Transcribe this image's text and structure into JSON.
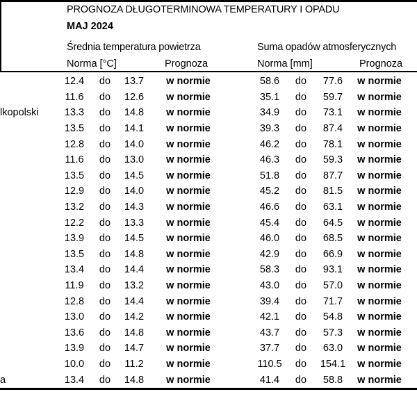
{
  "colors": {
    "text": "#000000",
    "background": "#ffffff",
    "rule": "#000000"
  },
  "header": {
    "title": "PROGNOZA DŁUGOTERMINOWA TEMPERATURY I OPADU",
    "month": "MAJ 2024"
  },
  "table": {
    "section_temperature": "Średnia temperatura powietrza",
    "section_precipitation": "Suma opadów atmosferycznych",
    "columns": {
      "temp_norm": "Norma [°C]",
      "temp_forecast": "Prognoza",
      "precip_norm": "Norma [mm]",
      "precip_forecast": "Prognoza"
    },
    "range_word": "do",
    "rows": [
      {
        "station_fragment": "",
        "temp_low": "12.4",
        "temp_high": "13.7",
        "temp_forecast": "w normie",
        "precip_low": "58.6",
        "precip_high": "77.6",
        "precip_forecast": "w normie"
      },
      {
        "station_fragment": "",
        "temp_low": "11.6",
        "temp_high": "12.6",
        "temp_forecast": "w normie",
        "precip_low": "35.1",
        "precip_high": "59.7",
        "precip_forecast": "w normie"
      },
      {
        "station_fragment": "lkopolski",
        "temp_low": "13.3",
        "temp_high": "14.8",
        "temp_forecast": "w normie",
        "precip_low": "34.9",
        "precip_high": "73.1",
        "precip_forecast": "w normie"
      },
      {
        "station_fragment": "",
        "temp_low": "13.5",
        "temp_high": "14.1",
        "temp_forecast": "w normie",
        "precip_low": "39.3",
        "precip_high": "87.4",
        "precip_forecast": "w normie"
      },
      {
        "station_fragment": "",
        "temp_low": "12.8",
        "temp_high": "14.0",
        "temp_forecast": "w normie",
        "precip_low": "46.2",
        "precip_high": "78.1",
        "precip_forecast": "w normie"
      },
      {
        "station_fragment": "",
        "temp_low": "11.6",
        "temp_high": "13.0",
        "temp_forecast": "w normie",
        "precip_low": "46.3",
        "precip_high": "59.3",
        "precip_forecast": "w normie"
      },
      {
        "station_fragment": "",
        "temp_low": "13.5",
        "temp_high": "14.5",
        "temp_forecast": "w normie",
        "precip_low": "51.8",
        "precip_high": "87.7",
        "precip_forecast": "w normie"
      },
      {
        "station_fragment": "",
        "temp_low": "12.9",
        "temp_high": "14.0",
        "temp_forecast": "w normie",
        "precip_low": "45.2",
        "precip_high": "81.5",
        "precip_forecast": "w normie"
      },
      {
        "station_fragment": "",
        "temp_low": "13.2",
        "temp_high": "14.3",
        "temp_forecast": "w normie",
        "precip_low": "46.6",
        "precip_high": "63.1",
        "precip_forecast": "w normie"
      },
      {
        "station_fragment": "",
        "temp_low": "12.2",
        "temp_high": "13.3",
        "temp_forecast": "w normie",
        "precip_low": "45.4",
        "precip_high": "64.5",
        "precip_forecast": "w normie"
      },
      {
        "station_fragment": "",
        "temp_low": "13.9",
        "temp_high": "14.5",
        "temp_forecast": "w normie",
        "precip_low": "46.0",
        "precip_high": "68.5",
        "precip_forecast": "w normie"
      },
      {
        "station_fragment": "",
        "temp_low": "13.5",
        "temp_high": "14.8",
        "temp_forecast": "w normie",
        "precip_low": "42.9",
        "precip_high": "66.9",
        "precip_forecast": "w normie"
      },
      {
        "station_fragment": "",
        "temp_low": "13.4",
        "temp_high": "14.4",
        "temp_forecast": "w normie",
        "precip_low": "58.3",
        "precip_high": "93.1",
        "precip_forecast": "w normie"
      },
      {
        "station_fragment": "",
        "temp_low": "11.9",
        "temp_high": "13.2",
        "temp_forecast": "w normie",
        "precip_low": "43.0",
        "precip_high": "57.0",
        "precip_forecast": "w normie"
      },
      {
        "station_fragment": "",
        "temp_low": "12.8",
        "temp_high": "14.4",
        "temp_forecast": "w normie",
        "precip_low": "39.4",
        "precip_high": "71.7",
        "precip_forecast": "w normie"
      },
      {
        "station_fragment": "",
        "temp_low": "13.0",
        "temp_high": "14.2",
        "temp_forecast": "w normie",
        "precip_low": "42.1",
        "precip_high": "54.8",
        "precip_forecast": "w normie"
      },
      {
        "station_fragment": "",
        "temp_low": "13.6",
        "temp_high": "14.8",
        "temp_forecast": "w normie",
        "precip_low": "43.7",
        "precip_high": "57.3",
        "precip_forecast": "w normie"
      },
      {
        "station_fragment": "",
        "temp_low": "13.9",
        "temp_high": "14.7",
        "temp_forecast": "w normie",
        "precip_low": "37.7",
        "precip_high": "63.0",
        "precip_forecast": "w normie"
      },
      {
        "station_fragment": "",
        "temp_low": "10.0",
        "temp_high": "11.2",
        "temp_forecast": "w normie",
        "precip_low": "110.5",
        "precip_high": "154.1",
        "precip_forecast": "w normie"
      },
      {
        "station_fragment": "a",
        "temp_low": "13.4",
        "temp_high": "14.8",
        "temp_forecast": "w normie",
        "precip_low": "41.4",
        "precip_high": "58.8",
        "precip_forecast": "w normie"
      }
    ]
  }
}
